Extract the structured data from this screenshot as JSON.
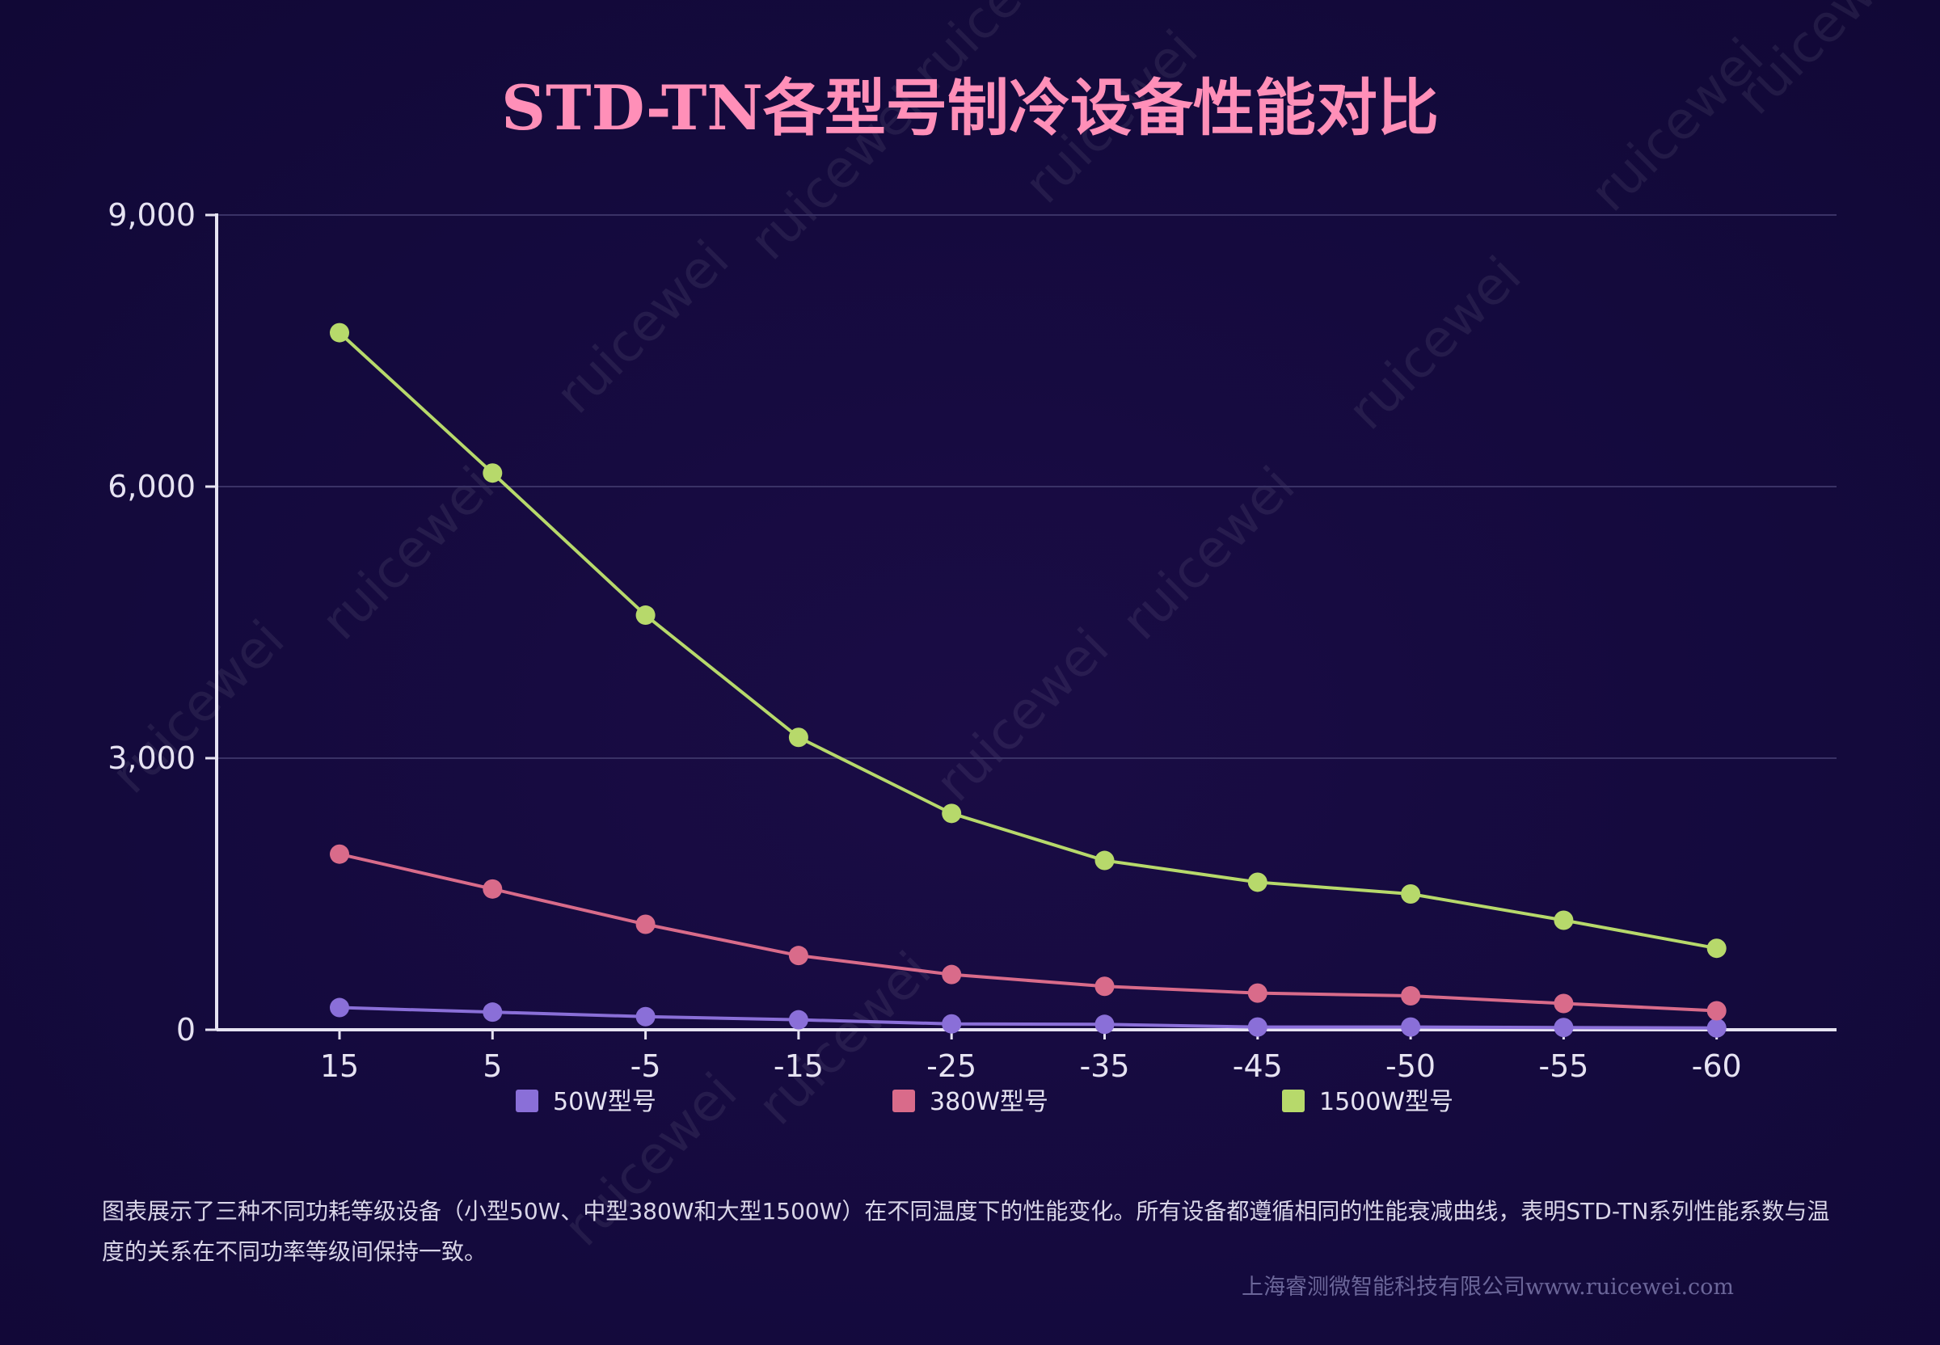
{
  "chart_data": {
    "type": "line",
    "title": "STD-TN各型号制冷设备性能对比",
    "xlabel": "",
    "ylabel": "",
    "categories": [
      "15",
      "5",
      "-5",
      "-15",
      "-25",
      "-35",
      "-45",
      "-50",
      "-55",
      "-60"
    ],
    "ylim": [
      0,
      9000
    ],
    "yticks": [
      "0",
      "3,000",
      "6,000",
      "9,000"
    ],
    "ytick_values": [
      0,
      3000,
      6000,
      9000
    ],
    "grid": true,
    "legend_position": "bottom",
    "series": [
      {
        "name": "50W型号",
        "color": "#8a6fd8",
        "values": [
          245,
          195,
          145,
          110,
          65,
          60,
          30,
          30,
          25,
          20
        ]
      },
      {
        "name": "380W型号",
        "color": "#d96b8a",
        "values": [
          1940,
          1555,
          1165,
          820,
          610,
          480,
          405,
          375,
          290,
          210
        ]
      },
      {
        "name": "1500W型号",
        "color": "#b7d96b",
        "values": [
          7700,
          6150,
          4580,
          3230,
          2390,
          1870,
          1630,
          1500,
          1210,
          900
        ]
      }
    ]
  },
  "description": "图表展示了三种不同功耗等级设备（小型50W、中型380W和大型1500W）在不同温度下的性能变化。所有设备都遵循相同的性能衰减曲线，表明STD-TN系列性能系数与温度的关系在不同功率等级间保持一致。",
  "footer": "上海睿测微智能科技有限公司www.ruicewei.com",
  "watermark": "ruicewei",
  "colors": {
    "background": "#140a3d",
    "title": "#ff8fb8",
    "axis": "#e6e3f2",
    "grid": "#3a3266"
  }
}
